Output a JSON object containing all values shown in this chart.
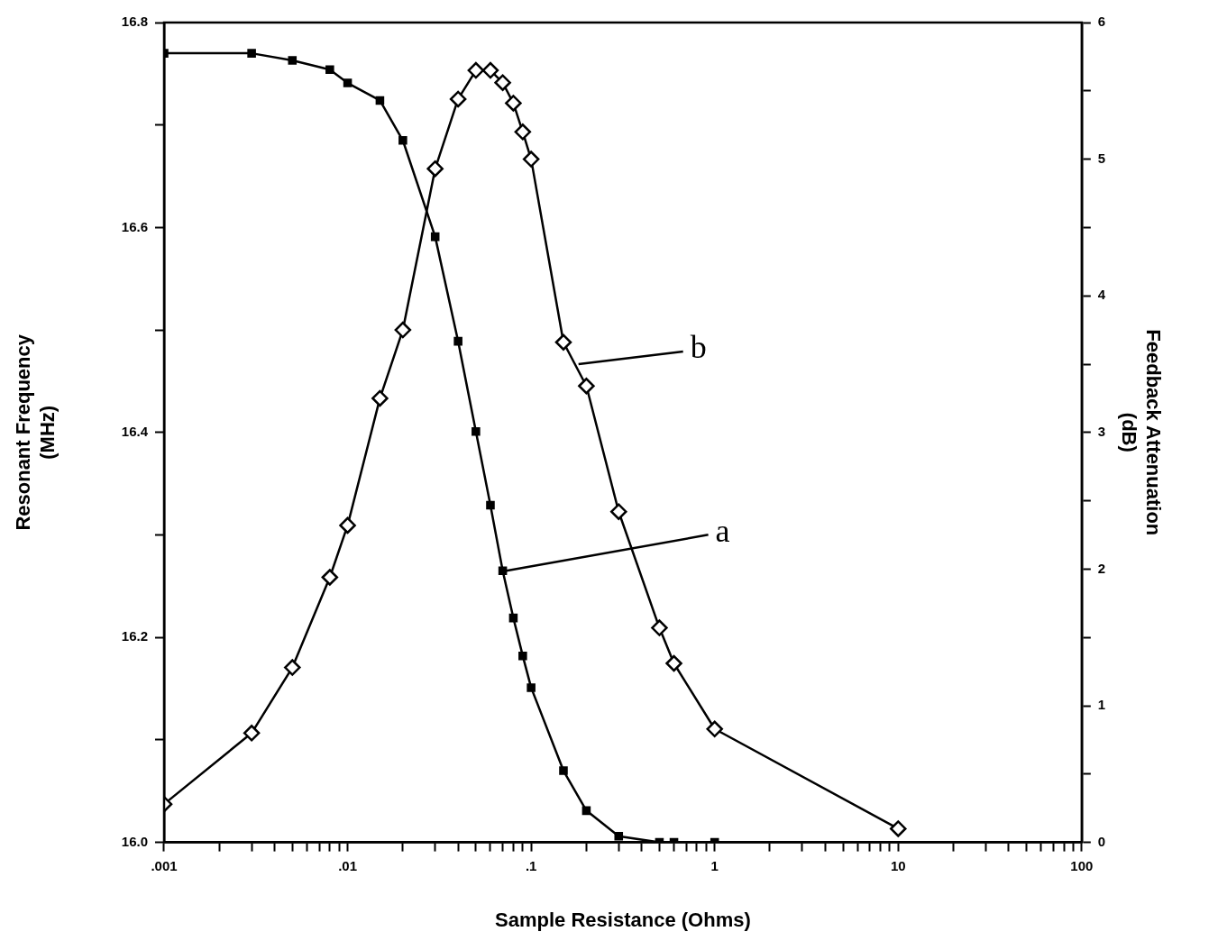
{
  "chart_data": {
    "type": "line",
    "xlabel": "Sample Resistance (Ohms)",
    "ylabel": "Resonant Frequency\n(MHz)",
    "y2label": "Feedback Attenuation\n(dB)",
    "log": "x",
    "grid": false,
    "legend": false,
    "line_style": "solid",
    "xlim": [
      0.001,
      100
    ],
    "xticks": [
      {
        "value": 0.001,
        "label": ".001"
      },
      {
        "value": 0.002,
        "label": null
      },
      {
        "value": 0.003,
        "label": null
      },
      {
        "value": 0.004,
        "label": null
      },
      {
        "value": 0.005,
        "label": null
      },
      {
        "value": 0.006,
        "label": null
      },
      {
        "value": 0.007,
        "label": null
      },
      {
        "value": 0.008,
        "label": null
      },
      {
        "value": 0.009,
        "label": null
      },
      {
        "value": 0.01,
        "label": ".01"
      },
      {
        "value": 0.02,
        "label": null
      },
      {
        "value": 0.03,
        "label": null
      },
      {
        "value": 0.04,
        "label": null
      },
      {
        "value": 0.05,
        "label": null
      },
      {
        "value": 0.06,
        "label": null
      },
      {
        "value": 0.07,
        "label": null
      },
      {
        "value": 0.08,
        "label": null
      },
      {
        "value": 0.09,
        "label": null
      },
      {
        "value": 0.1,
        "label": ".1"
      },
      {
        "value": 0.2,
        "label": null
      },
      {
        "value": 0.3,
        "label": null
      },
      {
        "value": 0.4,
        "label": null
      },
      {
        "value": 0.5,
        "label": null
      },
      {
        "value": 0.6,
        "label": null
      },
      {
        "value": 0.7,
        "label": null
      },
      {
        "value": 0.8,
        "label": null
      },
      {
        "value": 0.9,
        "label": null
      },
      1,
      {
        "value": 2,
        "label": null
      },
      {
        "value": 3,
        "label": null
      },
      {
        "value": 4,
        "label": null
      },
      {
        "value": 5,
        "label": null
      },
      {
        "value": 6,
        "label": null
      },
      {
        "value": 7,
        "label": null
      },
      {
        "value": 8,
        "label": null
      },
      {
        "value": 9,
        "label": null
      },
      10,
      {
        "value": 20,
        "label": null
      },
      {
        "value": 30,
        "label": null
      },
      {
        "value": 40,
        "label": null
      },
      {
        "value": 50,
        "label": null
      },
      {
        "value": 60,
        "label": null
      },
      {
        "value": 70,
        "label": null
      },
      {
        "value": 80,
        "label": null
      },
      {
        "value": 90,
        "label": null
      },
      100
    ],
    "ylim": [
      16.0,
      16.8
    ],
    "yticks": [
      {
        "value": 16.0,
        "label": "16.0"
      },
      {
        "value": 16.1,
        "label": null
      },
      16.2,
      {
        "value": 16.3,
        "label": null
      },
      16.4,
      {
        "value": 16.5,
        "label": null
      },
      16.6,
      {
        "value": 16.7,
        "label": null
      },
      16.8
    ],
    "y2lim": [
      0,
      6
    ],
    "y2ticks": [
      0,
      {
        "value": 0.5,
        "label": null
      },
      1,
      {
        "value": 1.5,
        "label": null
      },
      2,
      {
        "value": 2.5,
        "label": null
      },
      3,
      {
        "value": 3.5,
        "label": null
      },
      4,
      {
        "value": 4.5,
        "label": null
      },
      5,
      {
        "value": 5.5,
        "label": null
      },
      6
    ],
    "series": [
      {
        "color": "#000000",
        "marker": "square",
        "x": [
          0.001,
          0.003,
          0.005,
          0.008,
          0.01,
          0.015,
          0.02,
          0.03,
          0.04,
          0.05,
          0.06,
          0.07,
          0.08,
          0.09,
          0.1,
          0.15,
          0.2,
          0.3,
          0.5,
          0.6,
          1
        ],
        "values": [
          16.77,
          16.77,
          16.763,
          16.754,
          16.741,
          16.724,
          16.685,
          16.591,
          16.489,
          16.401,
          16.329,
          16.265,
          16.219,
          16.182,
          16.151,
          16.07,
          16.031,
          16.006,
          16.0,
          16.0,
          16.0
        ]
      },
      {
        "color": "#000000",
        "marker": "diamond",
        "axis": "y2",
        "x": [
          0.001,
          0.003,
          0.005,
          0.008,
          0.01,
          0.015,
          0.02,
          0.03,
          0.04,
          0.05,
          0.06,
          0.07,
          0.08,
          0.09,
          0.1,
          0.15,
          0.2,
          0.3,
          0.5,
          0.6,
          1,
          10
        ],
        "values": [
          0.28,
          0.8,
          1.28,
          1.94,
          2.32,
          3.25,
          3.75,
          4.93,
          5.44,
          5.65,
          5.65,
          5.56,
          5.41,
          5.2,
          5.0,
          3.66,
          3.34,
          2.42,
          1.57,
          1.31,
          0.83,
          0.1
        ]
      }
    ],
    "annotations": [
      {
        "text": "a",
        "x": 0.07,
        "y": 16.265
      },
      "b"
    ]
  }
}
